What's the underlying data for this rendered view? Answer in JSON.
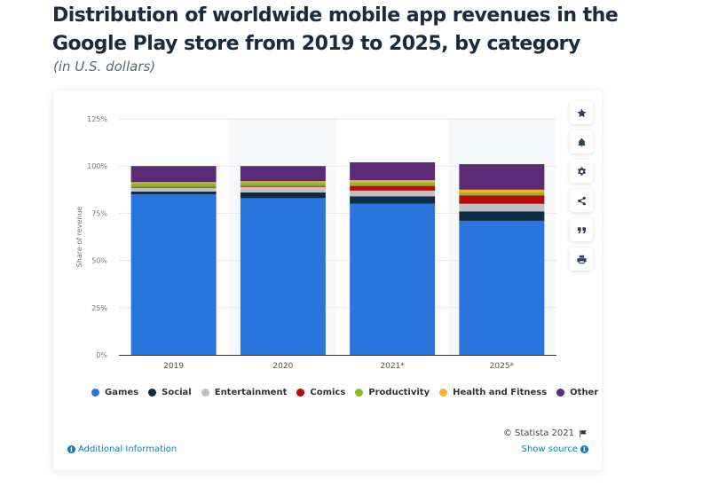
{
  "header": {
    "title": "Distribution of worldwide mobile app revenues in the Google Play store from 2019 to 2025, by category",
    "subtitle": "(in U.S. dollars)"
  },
  "sidebar_buttons": [
    {
      "icon": "star-icon",
      "label": "favorite"
    },
    {
      "icon": "bell-icon",
      "label": "notification"
    },
    {
      "icon": "gear-icon",
      "label": "settings"
    },
    {
      "icon": "share-icon",
      "label": "share"
    },
    {
      "icon": "quote-icon",
      "label": "cite"
    },
    {
      "icon": "print-icon",
      "label": "print"
    }
  ],
  "footer": {
    "copyright": "© Statista 2021",
    "additional_info": "Additional Information",
    "show_source": "Show source"
  },
  "chart_data": {
    "type": "bar",
    "stacked": true,
    "title": "Distribution of worldwide mobile app revenues in the Google Play store from 2019 to 2025, by category",
    "subtitle": "(in U.S. dollars)",
    "xlabel": "",
    "ylabel": "Share of revenue",
    "ylim": [
      0,
      125
    ],
    "yticks": [
      "0%",
      "25%",
      "50%",
      "75%",
      "100%",
      "125%"
    ],
    "ytick_values": [
      0,
      25,
      50,
      75,
      100,
      125
    ],
    "grid": true,
    "legend_position": "bottom",
    "categories": [
      "2019",
      "2020",
      "2021*",
      "2025*"
    ],
    "series": [
      {
        "name": "Games",
        "color": "#2876dd",
        "values": [
          85,
          83,
          80,
          71
        ]
      },
      {
        "name": "Social",
        "color": "#0f2b46",
        "values": [
          1.5,
          3,
          4,
          5
        ]
      },
      {
        "name": "Entertainment",
        "color": "#c0c0c0",
        "values": [
          2,
          3,
          3,
          4
        ]
      },
      {
        "name": "Comics",
        "color": "#b50b0b",
        "values": [
          0.5,
          0.5,
          2.5,
          4.5
        ]
      },
      {
        "name": "Productivity",
        "color": "#86bd29",
        "values": [
          2,
          2,
          2,
          1.5
        ]
      },
      {
        "name": "Health and Fitness",
        "color": "#f1b52b",
        "values": [
          0.5,
          0.5,
          1,
          1.5
        ]
      },
      {
        "name": "Other",
        "color": "#5c2a77",
        "values": [
          8.5,
          8,
          9.5,
          13.5
        ]
      }
    ]
  }
}
